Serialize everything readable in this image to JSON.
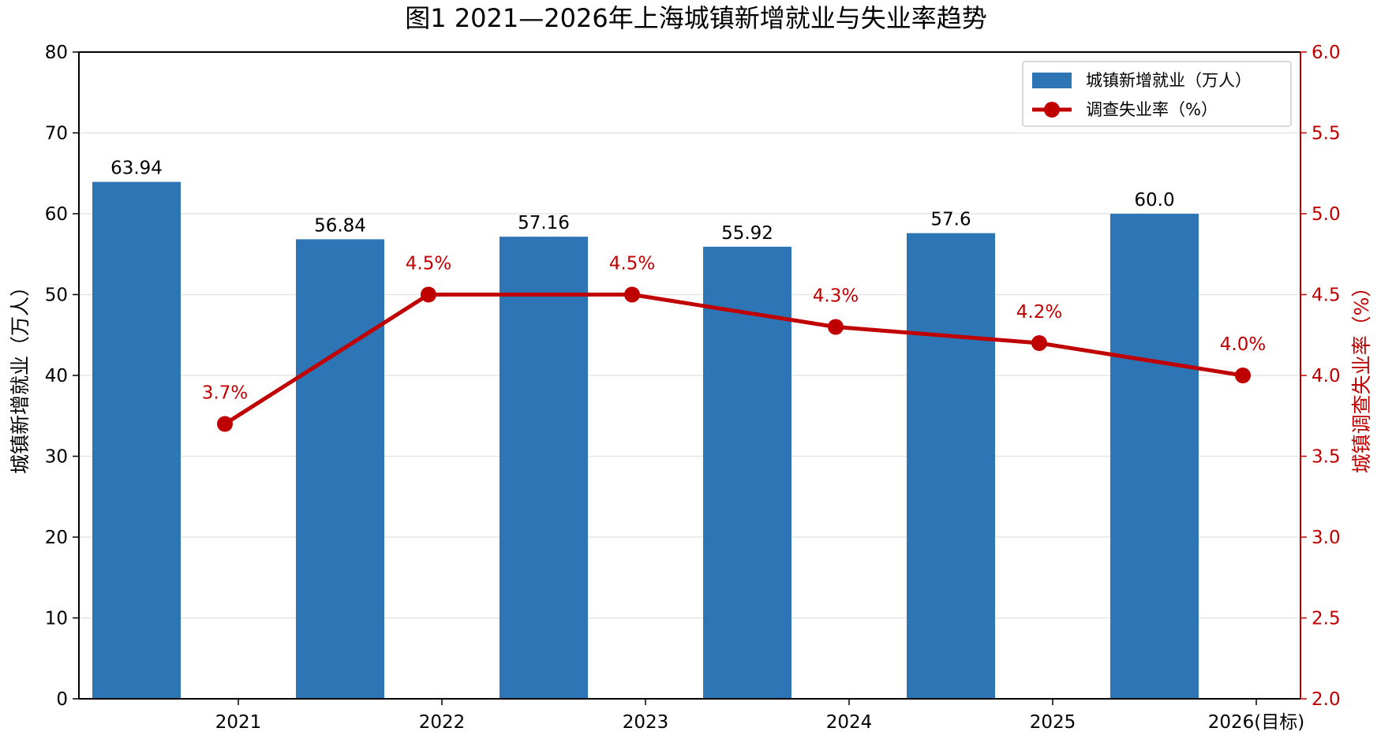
{
  "chart_data": {
    "type": "bar+line",
    "title": "图1  2021—2026年上海城镇新增就业与失业率趋势",
    "categories": [
      "2021",
      "2022",
      "2023",
      "2024",
      "2025",
      "2026(目标)"
    ],
    "y_left": {
      "label": "城镇新增就业（万人）",
      "lim": [
        0,
        80
      ],
      "ticks": [
        "0",
        "10",
        "20",
        "30",
        "40",
        "50",
        "60",
        "70",
        "80"
      ]
    },
    "y_right": {
      "label": "城镇调查失业率（%）",
      "lim": [
        2.0,
        6.0
      ],
      "ticks": [
        "2.0",
        "2.5",
        "3.0",
        "3.5",
        "4.0",
        "4.5",
        "5.0",
        "5.5",
        "6.0"
      ],
      "color": "#c00000"
    },
    "grid": true,
    "legend_position": "top-right",
    "series": [
      {
        "name": "城镇新增就业（万人）",
        "type": "bar",
        "axis": "left",
        "color": "#2e75b6",
        "values": [
          63.94,
          56.84,
          57.16,
          55.92,
          57.6,
          60.0
        ],
        "labels": [
          "63.94",
          "56.84",
          "57.16",
          "55.92",
          "57.6",
          "60.0"
        ]
      },
      {
        "name": "调查失业率（%）",
        "type": "line",
        "axis": "right",
        "color": "#c00000",
        "values": [
          3.7,
          4.5,
          4.5,
          4.3,
          4.2,
          4.0
        ],
        "labels": [
          "3.7%",
          "4.5%",
          "4.5%",
          "4.3%",
          "4.2%",
          "4.0%"
        ]
      }
    ]
  }
}
